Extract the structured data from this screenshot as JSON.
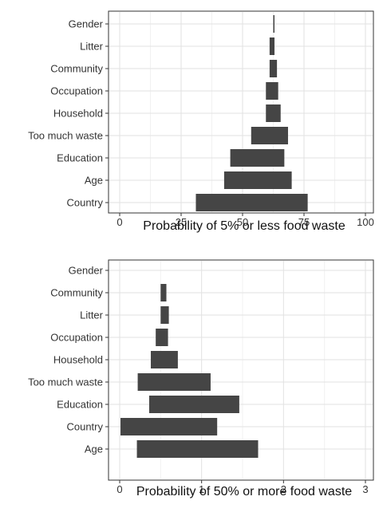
{
  "chart_data": [
    {
      "type": "bar",
      "orientation": "horizontal",
      "style": "floating",
      "categories": [
        "Gender",
        "Litter",
        "Community",
        "Occupation",
        "Household",
        "Too much waste",
        "Education",
        "Age",
        "Country"
      ],
      "ranges": [
        [
          62.5,
          63
        ],
        [
          61,
          63
        ],
        [
          61,
          64
        ],
        [
          59.5,
          64.5
        ],
        [
          59.5,
          65.5
        ],
        [
          53.5,
          68.5
        ],
        [
          45,
          67
        ],
        [
          42.5,
          70
        ],
        [
          31,
          76.5
        ]
      ],
      "xlabel": "Probability  of 5% or less food waste",
      "ylabel": "",
      "xlim": [
        0,
        100
      ],
      "xticks": [
        0,
        25,
        50,
        75,
        100
      ],
      "grid": true,
      "bar_color": "#454545"
    },
    {
      "type": "bar",
      "orientation": "horizontal",
      "style": "floating",
      "categories": [
        "Gender",
        "Community",
        "Litter",
        "Occupation",
        "Household",
        "Too much waste",
        "Education",
        "Country",
        "Age"
      ],
      "ranges": [
        null,
        [
          0.5,
          0.57
        ],
        [
          0.5,
          0.6
        ],
        [
          0.44,
          0.59
        ],
        [
          0.38,
          0.71
        ],
        [
          0.22,
          1.11
        ],
        [
          0.36,
          1.46
        ],
        [
          0.01,
          1.19
        ],
        [
          0.21,
          1.69
        ]
      ],
      "xlabel": "Probability  of 50% or more food waste",
      "ylabel": "",
      "xlim": [
        0,
        3
      ],
      "xticks": [
        0,
        1,
        2,
        3
      ],
      "grid": true,
      "bar_color": "#454545"
    }
  ]
}
